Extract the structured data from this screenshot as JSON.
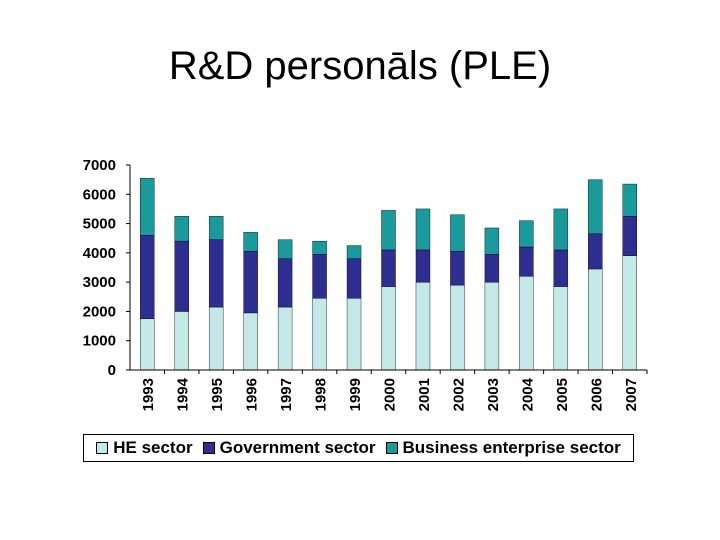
{
  "slide": {
    "title": "R&D personāls (PLE)"
  },
  "chart_data": {
    "type": "bar",
    "stacked": true,
    "title": "",
    "xlabel": "",
    "ylabel": "",
    "ylim": [
      0,
      7000
    ],
    "yticks": [
      0,
      1000,
      2000,
      3000,
      4000,
      5000,
      6000,
      7000
    ],
    "ytick_labels": [
      "0",
      "1000",
      "2000",
      "3000",
      "4000",
      "5000",
      "6000",
      "7000"
    ],
    "categories": [
      "1993",
      "1994",
      "1995",
      "1996",
      "1997",
      "1998",
      "1999",
      "2000",
      "2001",
      "2002",
      "2003",
      "2004",
      "2005",
      "2006",
      "2007"
    ],
    "series": [
      {
        "name": "HE sector",
        "color": "#c4e8e8",
        "values": [
          1750,
          2000,
          2150,
          1950,
          2150,
          2450,
          2450,
          2850,
          3000,
          2900,
          3000,
          3200,
          2850,
          3450,
          3900
        ]
      },
      {
        "name": "Government sector",
        "color": "#2e2e91",
        "values": [
          2850,
          2400,
          2300,
          2100,
          1650,
          1500,
          1350,
          1250,
          1100,
          1150,
          950,
          1000,
          1250,
          1200,
          1350
        ]
      },
      {
        "name": "Business enterprise sector",
        "color": "#1a9a9a",
        "values": [
          1950,
          850,
          800,
          650,
          650,
          450,
          450,
          1350,
          1400,
          1250,
          900,
          900,
          1400,
          1850,
          1100
        ]
      }
    ],
    "grid": false,
    "legend_position": "bottom"
  }
}
